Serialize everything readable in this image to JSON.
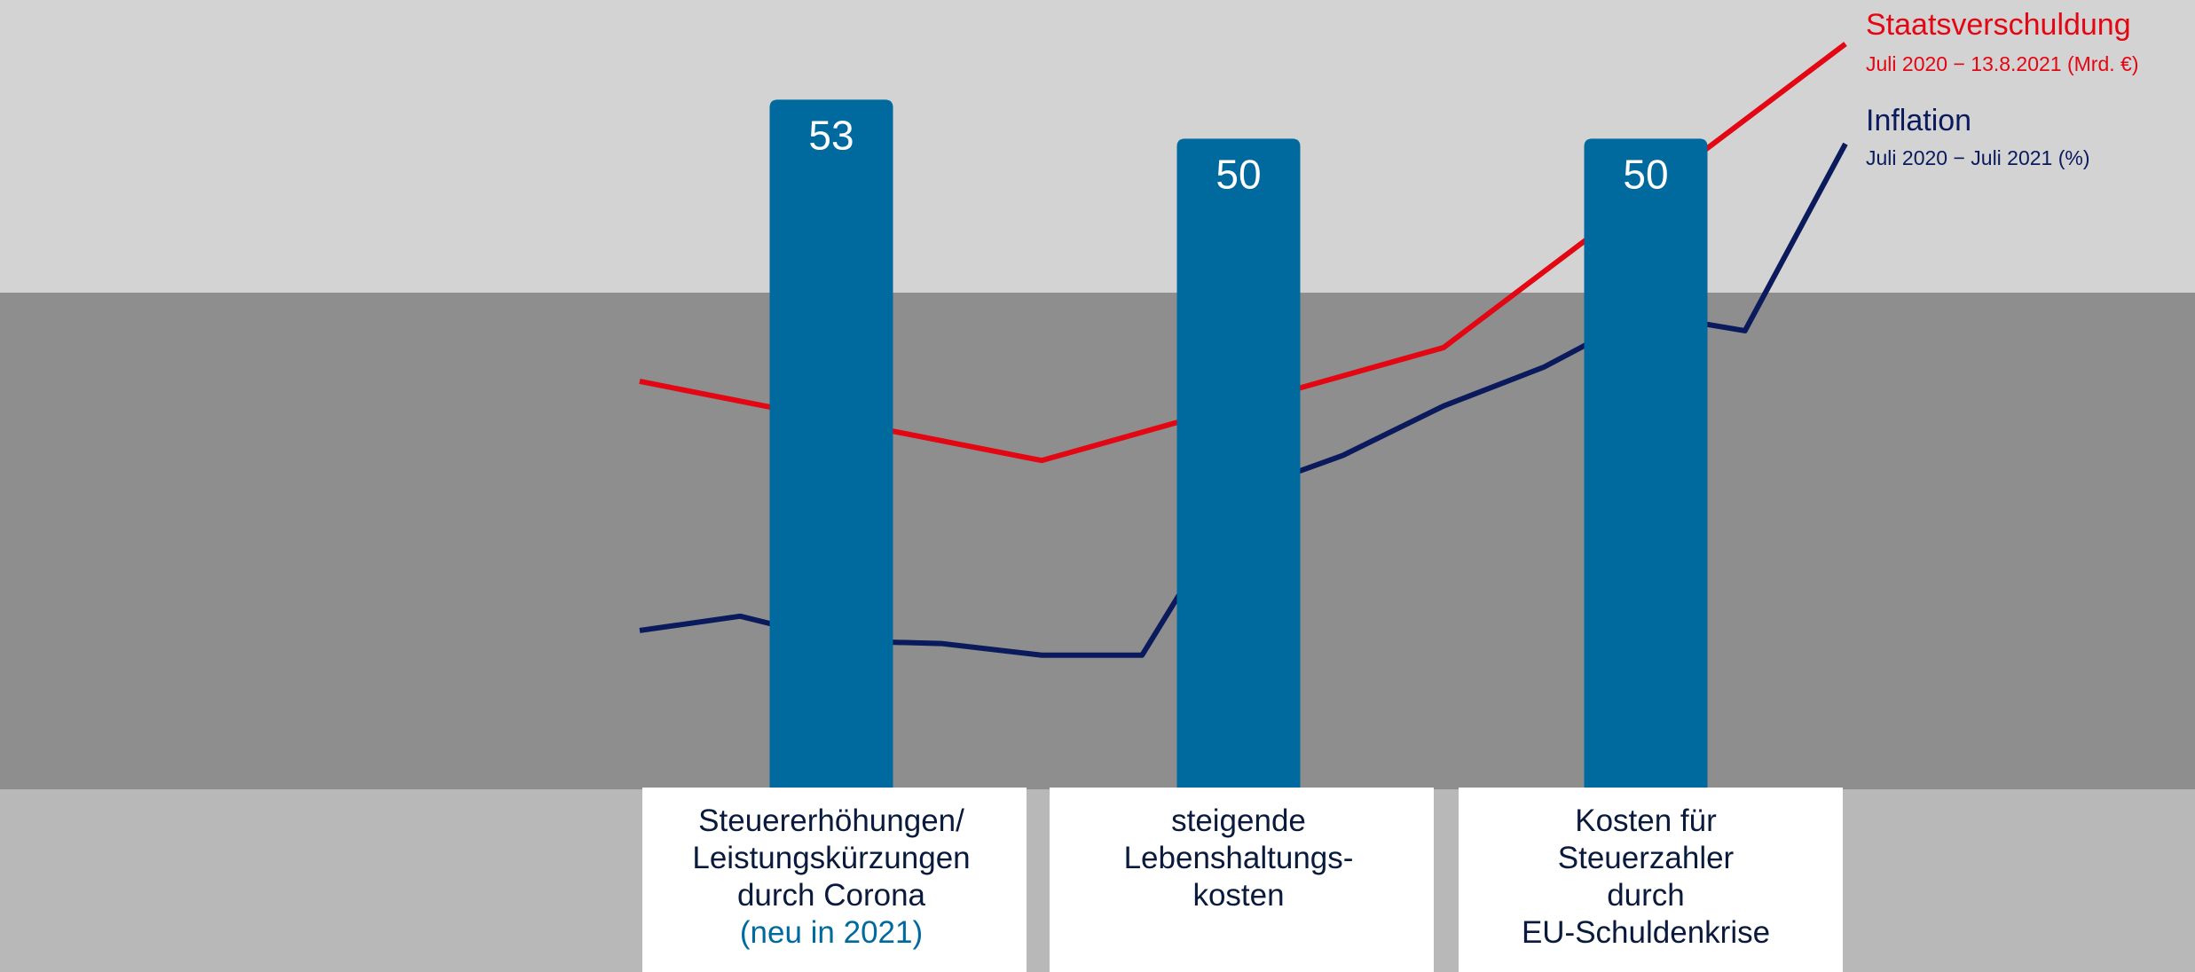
{
  "chart_data": {
    "type": "bar",
    "categories": [
      {
        "lines": [
          "Steuererhöhungen/",
          "Leistungskürzungen",
          "durch Corona"
        ],
        "note": "(neu in 2021)"
      },
      {
        "lines": [
          "steigende",
          "Lebenshaltungs-",
          "kosten"
        ]
      },
      {
        "lines": [
          "Kosten für",
          "Steuerzahler",
          "durch",
          "EU-Schuldenkrise"
        ]
      }
    ],
    "values": [
      53,
      50,
      50
    ],
    "color": "#006a9e",
    "ylim": [
      0,
      60
    ],
    "xlim": [
      0,
      12
    ],
    "lines": [
      {
        "name": "Staatsverschuldung",
        "subtitle": "Juli 2020 − 13.8.2021 (Mrd. €)",
        "color": "#e30613",
        "x": [
          0,
          4,
          8,
          12
        ],
        "values": [
          31.3,
          25.2,
          33.9,
          57.3
        ]
      },
      {
        "name": "Inflation",
        "subtitle": "Juli 2020 − Juli 2021 (%)",
        "color": "#0a1a5c",
        "x": [
          0,
          1,
          2,
          3,
          4,
          5,
          6,
          7,
          8,
          9,
          10,
          11,
          12
        ],
        "values": [
          12.1,
          13.2,
          11.3,
          11.1,
          10.2,
          10.2,
          22.8,
          25.6,
          29.4,
          32.4,
          36.5,
          35.2,
          49.6
        ]
      }
    ]
  }
}
